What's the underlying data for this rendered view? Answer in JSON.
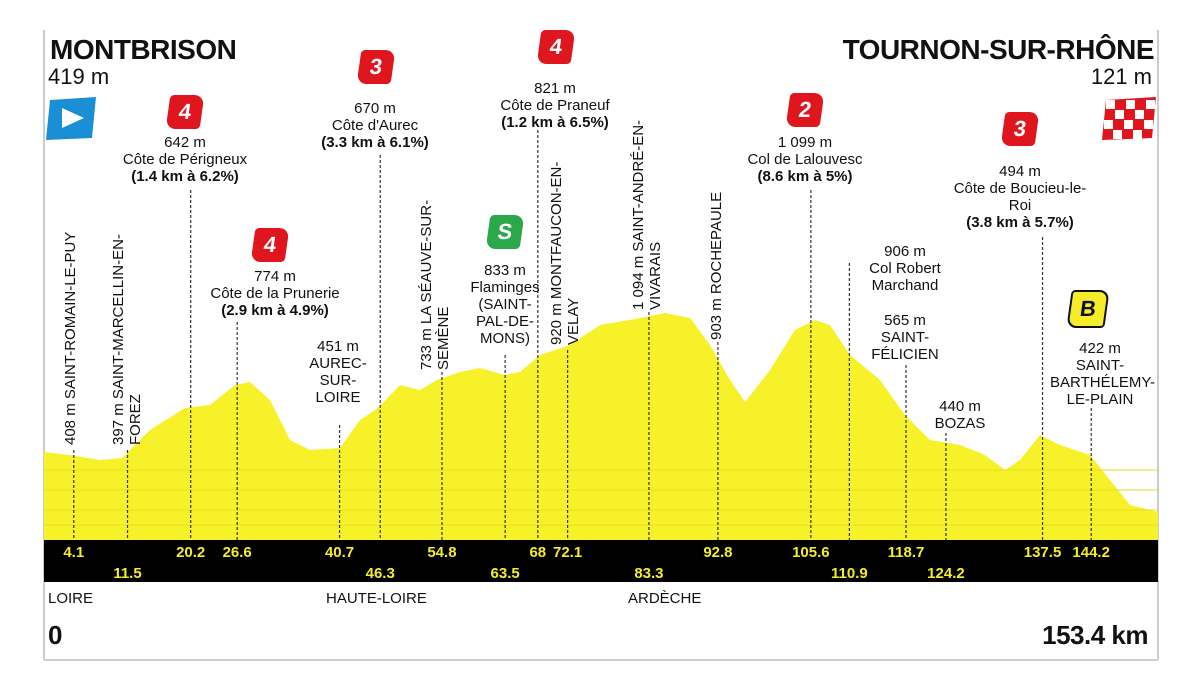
{
  "start": {
    "name": "MONTBRISON",
    "altitude": "419 m",
    "km": "0"
  },
  "finish": {
    "name": "TOURNON-SUR-RHÔNE",
    "altitude": "121 m",
    "km": "153.4 km"
  },
  "total_km": 153.4,
  "points": [
    {
      "km": 4.1,
      "altitude": "408 m",
      "name": "SAINT-ROMAIN-LE-PUY"
    },
    {
      "km": 11.5,
      "altitude": "397 m",
      "name": "SAINT-MARCELLIN-EN-FOREZ"
    },
    {
      "km": 20.2,
      "category": "4",
      "altitude": "642 m",
      "name": "Côte de Périgneux",
      "stats": "(1.4 km à 6.2%)"
    },
    {
      "km": 26.6,
      "category": "4",
      "altitude": "774 m",
      "name": "Côte de la Prunerie",
      "stats": "(2.9 km à 4.9%)"
    },
    {
      "km": 40.7,
      "altitude": "451 m",
      "name": "AUREC-SUR-LOIRE"
    },
    {
      "km": 46.3,
      "category": "3",
      "altitude": "670 m",
      "name": "Côte d'Aurec",
      "stats": "(3.3 km à 6.1%)"
    },
    {
      "km": 54.8,
      "altitude": "733 m",
      "name": "LA SÉAUVE-SUR-SEMÈNE"
    },
    {
      "km": 63.5,
      "category": "S",
      "altitude": "833 m",
      "name": "Flaminges (SAINT-PAL-DE-MONS)"
    },
    {
      "km": 68,
      "category": "4",
      "altitude": "821 m",
      "name": "Côte de Praneuf",
      "stats": "(1.2 km à 6.5%)"
    },
    {
      "km": 72.1,
      "altitude": "920 m",
      "name": "MONTFAUCON-EN-VELAY"
    },
    {
      "km": 83.3,
      "altitude": "1 094 m",
      "name": "SAINT-ANDRÉ-EN-VIVARAIS"
    },
    {
      "km": 92.8,
      "altitude": "903 m",
      "name": "ROCHEPAULE"
    },
    {
      "km": 105.6,
      "category": "2",
      "altitude": "1 099 m",
      "name": "Col de Lalouvesc",
      "stats": "(8.6 km à 5%)"
    },
    {
      "km": 110.9,
      "altitude": "906 m",
      "name": "Col Robert Marchand"
    },
    {
      "km": 118.7,
      "altitude": "565 m",
      "name": "SAINT-FÉLICIEN"
    },
    {
      "km": 124.2,
      "altitude": "440 m",
      "name": "BOZAS"
    },
    {
      "km": 137.5,
      "category": "3",
      "altitude": "494 m",
      "name": "Côte de Boucieu-le-Roi",
      "stats": "(3.8 km à 5.7%)"
    },
    {
      "km": 144.2,
      "category": "B",
      "altitude": "422 m",
      "name": "SAINT-BARTHÉLEMY-LE-PLAIN"
    }
  ],
  "departments": [
    "LOIRE",
    "HAUTE-LOIRE",
    "ARDÈCHE"
  ]
}
